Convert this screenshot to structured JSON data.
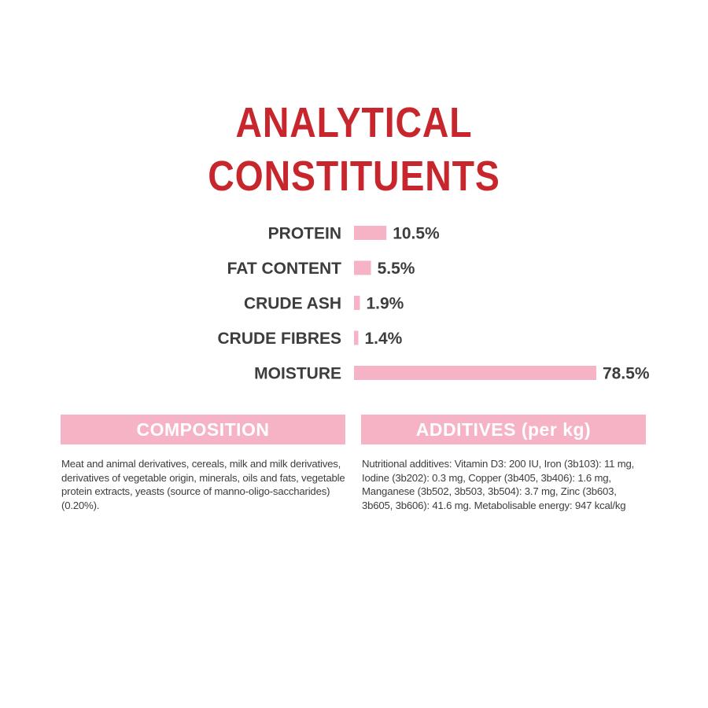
{
  "chart_data": {
    "type": "bar",
    "orientation": "horizontal",
    "title": "ANALYTICAL CONSTITUENTS",
    "title_lines": [
      "ANALYTICAL",
      "CONSTITUENTS"
    ],
    "categories": [
      "PROTEIN",
      "FAT CONTENT",
      "CRUDE ASH",
      "CRUDE FIBRES",
      "MOISTURE"
    ],
    "values": [
      10.5,
      5.5,
      1.9,
      1.4,
      78.5
    ],
    "value_labels": [
      "10.5%",
      "5.5%",
      "1.9%",
      "1.4%",
      "78.5%"
    ],
    "xlim": [
      0,
      78.5
    ],
    "grid": false,
    "bar_color": "#f6b3c6",
    "title_color": "#c8262d"
  },
  "composition": {
    "header": "COMPOSITION",
    "text": "Meat and animal derivatives, cereals, milk and milk derivatives, derivatives of vegetable origin, minerals, oils and fats, vegetable protein extracts, yeasts (source of manno-oligo-saccharides) (0.20%)."
  },
  "additives": {
    "header": "ADDITIVES (per kg)",
    "text": "Nutritional additives: Vitamin D3: 200 IU, Iron (3b103): 11 mg, Iodine (3b202): 0.3 mg, Copper (3b405, 3b406): 1.6 mg, Manganese (3b502, 3b503, 3b504): 3.7 mg, Zinc (3b603, 3b605, 3b606): 41.6 mg. Metabolisable energy: 947 kcal/kg"
  },
  "colors": {
    "accent_pink": "#f6b3c6",
    "title_red": "#c8262d",
    "text_gray": "#3d3d3d"
  }
}
